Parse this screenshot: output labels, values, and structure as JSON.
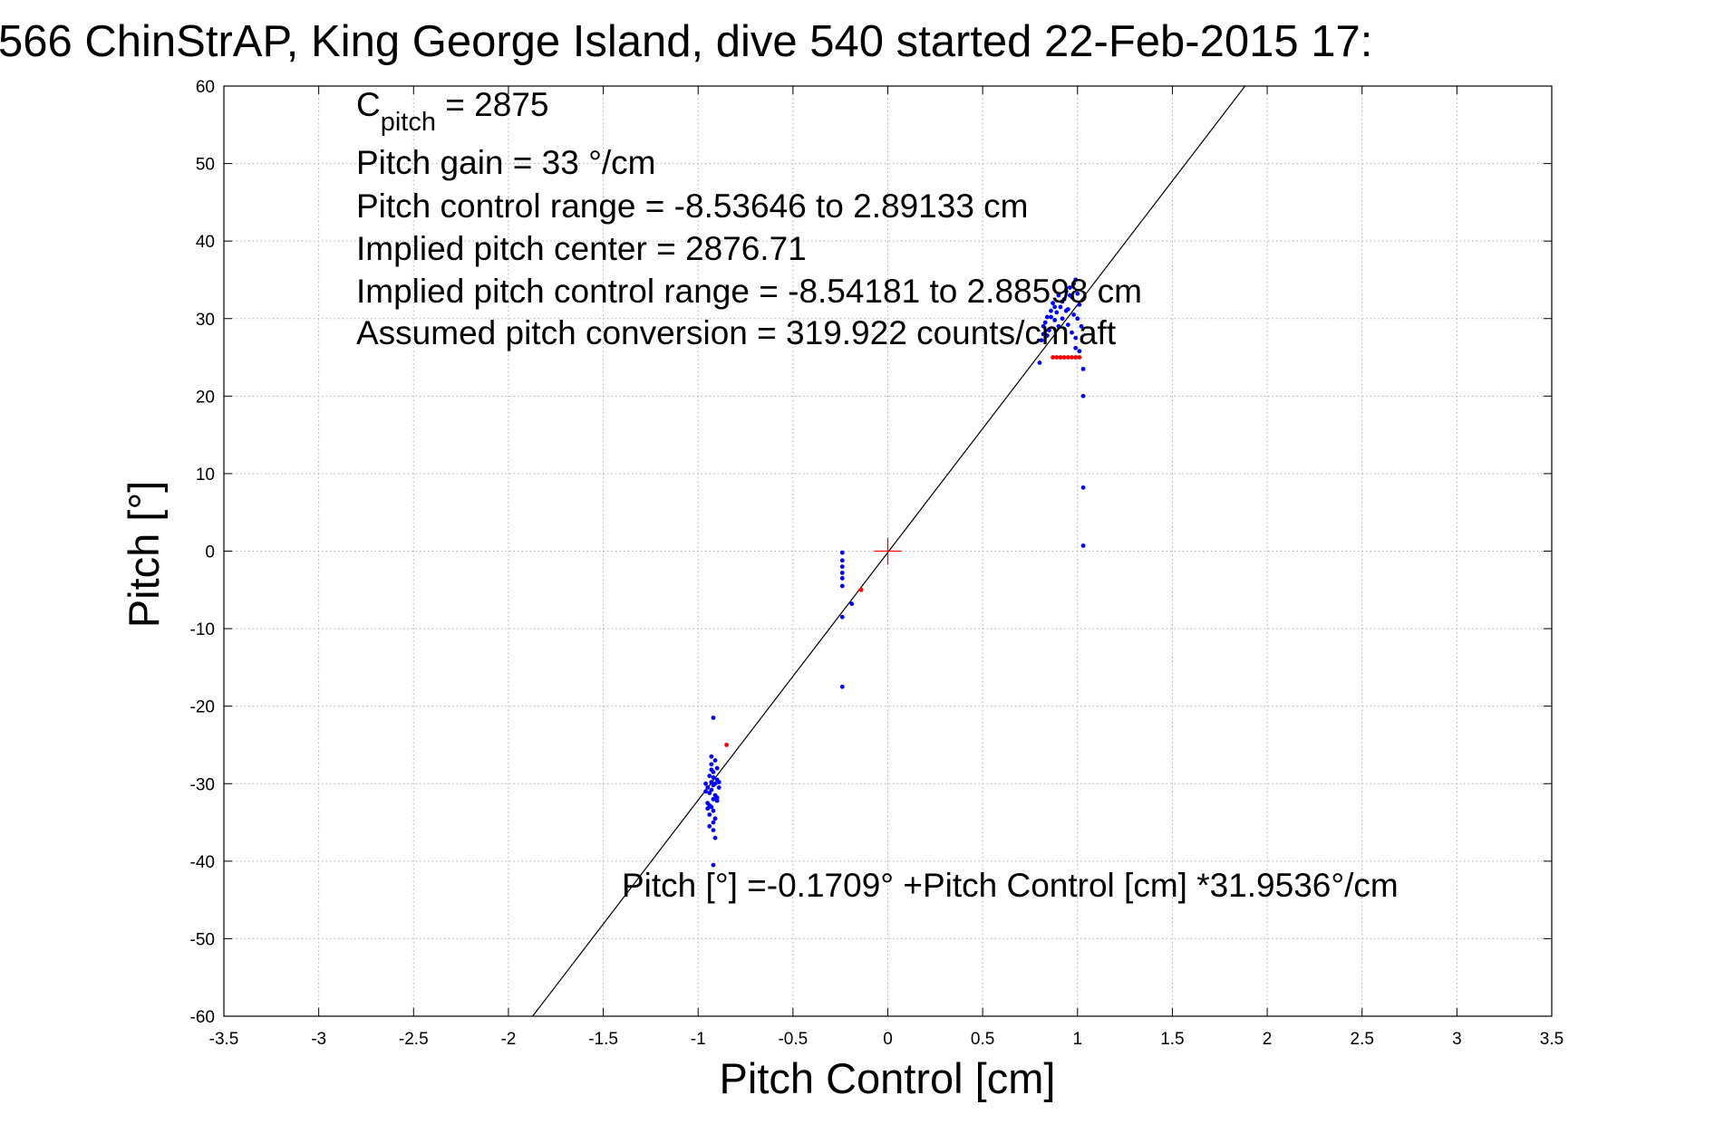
{
  "chart_data": {
    "type": "scatter",
    "title": "566 ChinStrAP, King George Island, dive 540 started 22-Feb-2015 17:",
    "xlabel": "Pitch Control [cm]",
    "ylabel": "Pitch [°]",
    "xlim": [
      -3.5,
      3.5
    ],
    "ylim": [
      -60,
      60
    ],
    "xticks": [
      -3.5,
      -3,
      -2.5,
      -2,
      -1.5,
      -1,
      -0.5,
      0,
      0.5,
      1,
      1.5,
      2,
      2.5,
      3,
      3.5
    ],
    "yticks": [
      -60,
      -50,
      -40,
      -30,
      -20,
      -10,
      0,
      10,
      20,
      30,
      40,
      50,
      60
    ],
    "xtick_labels": [
      "-3.5",
      "-3",
      "-2.5",
      "-2",
      "-1.5",
      "-1",
      "-0.5",
      "0",
      "0.5",
      "1",
      "1.5",
      "2",
      "2.5",
      "3",
      "3.5"
    ],
    "ytick_labels": [
      "-60",
      "-50",
      "-40",
      "-30",
      "-20",
      "-10",
      "0",
      "10",
      "20",
      "30",
      "40",
      "50",
      "60"
    ],
    "grid": true,
    "colors": {
      "fit_line": "#000000",
      "blue": "#0000ff",
      "red": "#ff0000",
      "grid": "#b0b0b0"
    },
    "annotations": {
      "c_pitch_main": "C",
      "c_pitch_sub": "pitch",
      "c_pitch_value": " = 2875",
      "line2": "Pitch gain = 33 °/cm",
      "line3": "Pitch control range = -8.53646 to 2.89133 cm",
      "line4": "Implied pitch center = 2876.71",
      "line5": "Implied pitch control range = -8.54181 to 2.88598 cm",
      "line6": "Assumed pitch conversion = 319.922 counts/cm aft",
      "fit_equation": "Pitch [°] =-0.1709° +Pitch Control [cm] *31.9536°/cm"
    },
    "fit": {
      "intercept": -0.1709,
      "slope": 31.9536
    },
    "center_marker": {
      "x": 0,
      "y": 0
    },
    "series": [
      {
        "color": "blue",
        "points": [
          [
            -0.95,
            -30.5
          ],
          [
            -0.94,
            -31.2
          ],
          [
            -0.93,
            -29.8
          ],
          [
            -0.92,
            -32.0
          ],
          [
            -0.91,
            -30.0
          ],
          [
            -0.9,
            -29.5
          ],
          [
            -0.92,
            -28.5
          ],
          [
            -0.93,
            -33.0
          ],
          [
            -0.94,
            -34.0
          ],
          [
            -0.92,
            -35.0
          ],
          [
            -0.91,
            -31.5
          ],
          [
            -0.9,
            -28.0
          ],
          [
            -0.89,
            -30.5
          ],
          [
            -0.93,
            -27.5
          ],
          [
            -0.95,
            -32.5
          ],
          [
            -0.96,
            -31.0
          ],
          [
            -0.94,
            -29.0
          ],
          [
            -0.92,
            -33.5
          ],
          [
            -0.91,
            -34.5
          ],
          [
            -0.93,
            -30.8
          ],
          [
            -0.9,
            -31.8
          ],
          [
            -0.92,
            -29.2
          ],
          [
            -0.94,
            -32.8
          ],
          [
            -0.91,
            -27.0
          ],
          [
            -0.93,
            -26.5
          ],
          [
            -0.92,
            -36.0
          ],
          [
            -0.91,
            -37.0
          ],
          [
            -0.92,
            -40.5
          ],
          [
            -0.92,
            -21.5
          ],
          [
            -0.89,
            -29.8
          ],
          [
            -0.96,
            -30.0
          ],
          [
            -0.95,
            -33.2
          ],
          [
            -0.94,
            -35.5
          ],
          [
            -0.93,
            -28.2
          ],
          [
            -0.9,
            -32.2
          ],
          [
            -0.92,
            -30.2
          ],
          [
            -0.24,
            -0.2
          ],
          [
            -0.24,
            -1.2
          ],
          [
            -0.24,
            -2.0
          ],
          [
            -0.24,
            -2.8
          ],
          [
            -0.24,
            -3.5
          ],
          [
            -0.24,
            -4.5
          ],
          [
            -0.24,
            -8.5
          ],
          [
            -0.19,
            -6.8
          ],
          [
            -0.24,
            -17.5
          ],
          [
            0.8,
            24.3
          ],
          [
            0.81,
            27.2
          ],
          [
            0.82,
            28.0
          ],
          [
            0.83,
            29.5
          ],
          [
            0.84,
            30.2
          ],
          [
            0.85,
            28.5
          ],
          [
            0.86,
            31.0
          ],
          [
            0.87,
            32.0
          ],
          [
            0.88,
            29.8
          ],
          [
            0.89,
            30.8
          ],
          [
            0.9,
            33.0
          ],
          [
            0.91,
            31.5
          ],
          [
            0.92,
            30.0
          ],
          [
            0.93,
            32.5
          ],
          [
            0.94,
            33.5
          ],
          [
            0.95,
            31.2
          ],
          [
            0.96,
            34.0
          ],
          [
            0.97,
            32.8
          ],
          [
            0.98,
            30.5
          ],
          [
            0.99,
            35.0
          ],
          [
            1.0,
            33.2
          ],
          [
            1.01,
            31.8
          ],
          [
            1.02,
            29.0
          ],
          [
            0.97,
            28.2
          ],
          [
            0.95,
            29.2
          ],
          [
            0.99,
            27.5
          ],
          [
            1.0,
            30.0
          ],
          [
            0.98,
            34.5
          ],
          [
            0.96,
            33.0
          ],
          [
            0.94,
            31.0
          ],
          [
            0.92,
            32.2
          ],
          [
            0.9,
            29.0
          ],
          [
            0.88,
            31.5
          ],
          [
            0.86,
            30.2
          ],
          [
            0.84,
            27.8
          ],
          [
            0.82,
            29.0
          ],
          [
            1.03,
            23.5
          ],
          [
            1.03,
            20.0
          ],
          [
            1.03,
            8.2
          ],
          [
            1.03,
            0.7
          ],
          [
            1.01,
            25.8
          ],
          [
            0.99,
            26.2
          ]
        ]
      },
      {
        "color": "red",
        "points": [
          [
            -0.85,
            -25.0
          ],
          [
            -0.14,
            -5.0
          ],
          [
            0.87,
            25.0
          ],
          [
            0.89,
            25.0
          ],
          [
            0.91,
            25.0
          ],
          [
            0.93,
            25.0
          ],
          [
            0.95,
            25.0
          ],
          [
            0.97,
            25.0
          ],
          [
            0.99,
            25.0
          ],
          [
            1.01,
            25.0
          ]
        ]
      }
    ]
  }
}
